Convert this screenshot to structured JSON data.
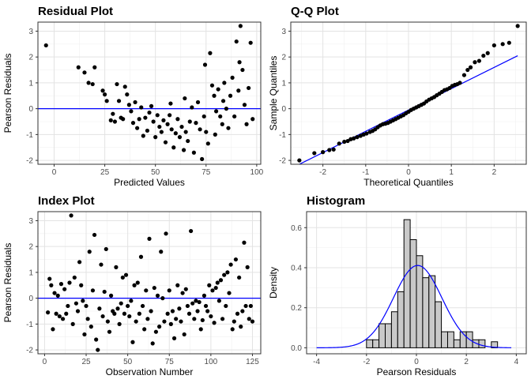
{
  "chart_data": [
    {
      "type": "scatter",
      "title": "Residual Plot",
      "xlabel": "Predicted Values",
      "ylabel": "Pearson Residuals",
      "xlim": [
        -8,
        102
      ],
      "ylim": [
        -2.15,
        3.35
      ],
      "xticks": [
        0,
        25,
        50,
        75,
        100
      ],
      "yticks": [
        -2,
        -1,
        0,
        1,
        2,
        3
      ],
      "hline": {
        "y": 0,
        "color": "#0000ff"
      },
      "points": [
        [
          -4,
          2.45
        ],
        [
          12,
          1.6
        ],
        [
          15,
          1.4
        ],
        [
          17,
          1.0
        ],
        [
          19,
          0.95
        ],
        [
          20,
          1.6
        ],
        [
          24,
          0.7
        ],
        [
          25,
          0.55
        ],
        [
          26,
          0.3
        ],
        [
          28,
          -0.45
        ],
        [
          29,
          -0.2
        ],
        [
          30,
          -0.5
        ],
        [
          31,
          0.95
        ],
        [
          32,
          0.3
        ],
        [
          33,
          -0.35
        ],
        [
          34,
          -0.4
        ],
        [
          35,
          0.85
        ],
        [
          36,
          0.55
        ],
        [
          37,
          0.15
        ],
        [
          38,
          -0.1
        ],
        [
          39,
          -0.55
        ],
        [
          40,
          0.25
        ],
        [
          41,
          -0.75
        ],
        [
          42,
          -0.4
        ],
        [
          43,
          0.05
        ],
        [
          44,
          -1.05
        ],
        [
          45,
          -0.35
        ],
        [
          46,
          -0.85
        ],
        [
          47,
          -0.15
        ],
        [
          48,
          0.1
        ],
        [
          49,
          -0.5
        ],
        [
          50,
          -1.1
        ],
        [
          51,
          -0.25
        ],
        [
          52,
          -0.7
        ],
        [
          53,
          -0.9
        ],
        [
          54,
          -0.45
        ],
        [
          55,
          -1.3
        ],
        [
          56,
          -0.6
        ],
        [
          57,
          -0.25
        ],
        [
          58,
          -0.8
        ],
        [
          59,
          -1.5
        ],
        [
          60,
          -0.95
        ],
        [
          61,
          -0.4
        ],
        [
          62,
          -1.1
        ],
        [
          63,
          -0.7
        ],
        [
          64,
          -1.6
        ],
        [
          65,
          -0.9
        ],
        [
          66,
          -1.25
        ],
        [
          67,
          -0.5
        ],
        [
          68,
          0.05
        ],
        [
          69,
          -1.7
        ],
        [
          70,
          -0.55
        ],
        [
          71,
          0.25
        ],
        [
          72,
          -0.8
        ],
        [
          73,
          -1.95
        ],
        [
          74,
          -0.3
        ],
        [
          75,
          -0.9
        ],
        [
          76,
          -1.35
        ],
        [
          77,
          2.15
        ],
        [
          78,
          0.9
        ],
        [
          79,
          0.5
        ],
        [
          80,
          -0.1
        ],
        [
          81,
          0.75
        ],
        [
          82,
          -0.3
        ],
        [
          83,
          -0.6
        ],
        [
          84,
          1.0
        ],
        [
          85,
          0.0
        ],
        [
          86,
          -0.75
        ],
        [
          87,
          0.5
        ],
        [
          88,
          1.2
        ],
        [
          89,
          -0.3
        ],
        [
          90,
          2.6
        ],
        [
          91,
          0.7
        ],
        [
          92,
          3.2
        ],
        [
          93,
          1.5
        ],
        [
          94,
          0.15
        ],
        [
          95,
          -0.6
        ],
        [
          96,
          0.8
        ],
        [
          97,
          2.55
        ],
        [
          98,
          -0.4
        ],
        [
          91.5,
          1.8
        ],
        [
          79.5,
          -1.0
        ],
        [
          83.5,
          0.3
        ],
        [
          74.5,
          1.7
        ],
        [
          64.5,
          0.4
        ],
        [
          57.5,
          0.2
        ]
      ]
    },
    {
      "type": "scatter",
      "title": "Q-Q Plot",
      "xlabel": "Theoretical Quantiles",
      "ylabel": "Sample Quantiles",
      "xlim": [
        -2.75,
        2.75
      ],
      "ylim": [
        -2.15,
        3.35
      ],
      "xticks": [
        -2,
        -1,
        0,
        1,
        2
      ],
      "yticks": [
        -2,
        -1,
        0,
        1,
        2,
        3
      ],
      "reference_line": {
        "x": [
          -2.55,
          2.55
        ],
        "y": [
          -2.15,
          2.05
        ],
        "color": "#0000ff"
      },
      "points": [
        [
          -2.55,
          -2.0
        ],
        [
          -2.2,
          -1.72
        ],
        [
          -2.0,
          -1.68
        ],
        [
          -1.85,
          -1.6
        ],
        [
          -1.75,
          -1.58
        ],
        [
          -1.62,
          -1.35
        ],
        [
          -1.5,
          -1.28
        ],
        [
          -1.42,
          -1.25
        ],
        [
          -1.35,
          -1.18
        ],
        [
          -1.28,
          -1.15
        ],
        [
          -1.2,
          -1.1
        ],
        [
          -1.12,
          -1.05
        ],
        [
          -1.05,
          -1.0
        ],
        [
          -0.98,
          -0.96
        ],
        [
          -0.9,
          -0.9
        ],
        [
          -0.84,
          -0.86
        ],
        [
          -0.78,
          -0.8
        ],
        [
          -0.72,
          -0.72
        ],
        [
          -0.66,
          -0.65
        ],
        [
          -0.6,
          -0.6
        ],
        [
          -0.54,
          -0.58
        ],
        [
          -0.48,
          -0.55
        ],
        [
          -0.42,
          -0.5
        ],
        [
          -0.36,
          -0.45
        ],
        [
          -0.3,
          -0.4
        ],
        [
          -0.24,
          -0.35
        ],
        [
          -0.18,
          -0.3
        ],
        [
          -0.12,
          -0.25
        ],
        [
          -0.06,
          -0.18
        ],
        [
          0.0,
          -0.12
        ],
        [
          0.06,
          -0.05
        ],
        [
          0.12,
          0.0
        ],
        [
          0.18,
          0.05
        ],
        [
          0.24,
          0.1
        ],
        [
          0.3,
          0.15
        ],
        [
          0.36,
          0.2
        ],
        [
          0.42,
          0.28
        ],
        [
          0.48,
          0.35
        ],
        [
          0.54,
          0.4
        ],
        [
          0.6,
          0.45
        ],
        [
          0.66,
          0.52
        ],
        [
          0.72,
          0.58
        ],
        [
          0.78,
          0.65
        ],
        [
          0.84,
          0.72
        ],
        [
          0.9,
          0.75
        ],
        [
          0.96,
          0.8
        ],
        [
          1.02,
          0.88
        ],
        [
          1.08,
          0.92
        ],
        [
          1.14,
          0.95
        ],
        [
          1.2,
          1.0
        ],
        [
          1.3,
          1.3
        ],
        [
          1.38,
          1.5
        ],
        [
          1.45,
          1.6
        ],
        [
          1.55,
          1.8
        ],
        [
          1.65,
          1.85
        ],
        [
          1.75,
          2.05
        ],
        [
          1.85,
          2.15
        ],
        [
          2.0,
          2.45
        ],
        [
          2.2,
          2.5
        ],
        [
          2.35,
          2.55
        ],
        [
          2.55,
          3.2
        ]
      ]
    },
    {
      "type": "scatter",
      "title": "Index Plot",
      "xlabel": "Observation Number",
      "ylabel": "Pearson Residuals",
      "xlim": [
        -4,
        130
      ],
      "ylim": [
        -2.15,
        3.35
      ],
      "xticks": [
        0,
        25,
        50,
        75,
        100,
        125
      ],
      "yticks": [
        -2,
        -1,
        0,
        1,
        2,
        3
      ],
      "hline": {
        "y": 0,
        "color": "#0000ff"
      },
      "points": [
        [
          2,
          -0.55
        ],
        [
          3,
          0.75
        ],
        [
          4,
          0.5
        ],
        [
          5,
          -1.2
        ],
        [
          6,
          0.2
        ],
        [
          7,
          -0.6
        ],
        [
          8,
          0.1
        ],
        [
          9,
          -0.7
        ],
        [
          10,
          0.55
        ],
        [
          11,
          -0.8
        ],
        [
          12,
          0.35
        ],
        [
          13,
          -0.6
        ],
        [
          14,
          -0.3
        ],
        [
          15,
          0.6
        ],
        [
          16,
          3.2
        ],
        [
          17,
          -1.0
        ],
        [
          18,
          0.8
        ],
        [
          19,
          -0.2
        ],
        [
          20,
          -0.5
        ],
        [
          21,
          1.4
        ],
        [
          22,
          0.5
        ],
        [
          23,
          -0.1
        ],
        [
          24,
          -1.4
        ],
        [
          25,
          -0.3
        ],
        [
          26,
          -0.8
        ],
        [
          27,
          1.8
        ],
        [
          28,
          -1.1
        ],
        [
          29,
          0.3
        ],
        [
          30,
          2.45
        ],
        [
          31,
          -1.6
        ],
        [
          32,
          -2.0
        ],
        [
          33,
          -0.4
        ],
        [
          34,
          1.3
        ],
        [
          35,
          -0.7
        ],
        [
          36,
          0.25
        ],
        [
          37,
          1.9
        ],
        [
          38,
          -0.9
        ],
        [
          39,
          -1.3
        ],
        [
          40,
          0.1
        ],
        [
          41,
          -0.5
        ],
        [
          42,
          -0.6
        ],
        [
          43,
          1.2
        ],
        [
          44,
          -0.4
        ],
        [
          45,
          -1.0
        ],
        [
          46,
          -0.2
        ],
        [
          47,
          0.8
        ],
        [
          48,
          -0.6
        ],
        [
          49,
          0.9
        ],
        [
          50,
          -0.3
        ],
        [
          51,
          -0.7
        ],
        [
          52,
          -0.1
        ],
        [
          53,
          -1.7
        ],
        [
          54,
          0.5
        ],
        [
          55,
          -0.9
        ],
        [
          56,
          0.6
        ],
        [
          57,
          -0.6
        ],
        [
          58,
          1.6
        ],
        [
          59,
          -0.3
        ],
        [
          60,
          -1.2
        ],
        [
          61,
          0.3
        ],
        [
          62,
          -0.8
        ],
        [
          63,
          2.3
        ],
        [
          64,
          -0.5
        ],
        [
          65,
          -1.75
        ],
        [
          66,
          0.4
        ],
        [
          67,
          -1.3
        ],
        [
          68,
          0.1
        ],
        [
          69,
          -1.1
        ],
        [
          70,
          1.8
        ],
        [
          71,
          0.0
        ],
        [
          72,
          -0.9
        ],
        [
          73,
          2.5
        ],
        [
          74,
          -0.6
        ],
        [
          75,
          0.3
        ],
        [
          76,
          -1.0
        ],
        [
          77,
          -0.5
        ],
        [
          78,
          -1.55
        ],
        [
          79,
          -0.8
        ],
        [
          80,
          0.5
        ],
        [
          81,
          -0.4
        ],
        [
          82,
          -0.9
        ],
        [
          83,
          0.2
        ],
        [
          84,
          -1.4
        ],
        [
          85,
          0.35
        ],
        [
          86,
          -0.3
        ],
        [
          87,
          -0.6
        ],
        [
          88,
          2.6
        ],
        [
          89,
          -0.2
        ],
        [
          90,
          -0.8
        ],
        [
          91,
          -0.1
        ],
        [
          92,
          -0.5
        ],
        [
          93,
          -0.15
        ],
        [
          94,
          -1.2
        ],
        [
          95,
          -0.85
        ],
        [
          96,
          0.1
        ],
        [
          97,
          -0.3
        ],
        [
          98,
          -0.5
        ],
        [
          99,
          0.5
        ],
        [
          100,
          -0.7
        ],
        [
          101,
          0.3
        ],
        [
          102,
          -0.95
        ],
        [
          103,
          0.4
        ],
        [
          104,
          0.6
        ],
        [
          105,
          -0.1
        ],
        [
          106,
          0.7
        ],
        [
          107,
          -0.8
        ],
        [
          108,
          0.9
        ],
        [
          109,
          -0.3
        ],
        [
          110,
          1.0
        ],
        [
          111,
          0.2
        ],
        [
          112,
          1.3
        ],
        [
          113,
          -1.2
        ],
        [
          114,
          -0.9
        ],
        [
          115,
          1.5
        ],
        [
          116,
          -0.6
        ],
        [
          117,
          0.8
        ],
        [
          118,
          -1.1
        ],
        [
          119,
          -0.5
        ],
        [
          120,
          2.15
        ],
        [
          121,
          -0.3
        ],
        [
          122,
          1.2
        ],
        [
          123,
          -0.8
        ],
        [
          124,
          -0.3
        ],
        [
          125,
          -0.9
        ]
      ]
    },
    {
      "type": "histogram",
      "title": "Histogram",
      "xlabel": "Pearson Residuals",
      "ylabel": "Density",
      "xlim": [
        -4.4,
        4.4
      ],
      "ylim": [
        -0.03,
        0.68
      ],
      "xticks": [
        -4,
        -2,
        0,
        2,
        4
      ],
      "yticks": [
        0.0,
        0.2,
        0.4,
        0.6
      ],
      "ytick_labels": [
        "0.0",
        "0.2",
        "0.4",
        "0.6"
      ],
      "bins": [
        [
          -2.0,
          -1.75,
          0.04
        ],
        [
          -1.75,
          -1.5,
          0.04
        ],
        [
          -1.5,
          -1.25,
          0.12
        ],
        [
          -1.25,
          -1.0,
          0.12
        ],
        [
          -1.0,
          -0.75,
          0.18
        ],
        [
          -0.75,
          -0.5,
          0.28
        ],
        [
          -0.5,
          -0.25,
          0.64
        ],
        [
          -0.25,
          0.0,
          0.54
        ],
        [
          0.0,
          0.25,
          0.46
        ],
        [
          0.25,
          0.5,
          0.35
        ],
        [
          0.5,
          0.75,
          0.36
        ],
        [
          0.75,
          1.0,
          0.23
        ],
        [
          1.0,
          1.25,
          0.08
        ],
        [
          1.25,
          1.5,
          0.08
        ],
        [
          1.5,
          1.75,
          0.04
        ],
        [
          1.75,
          2.0,
          0.08
        ],
        [
          2.0,
          2.25,
          0.08
        ],
        [
          2.25,
          2.5,
          0.04
        ],
        [
          2.5,
          2.75,
          0.04
        ],
        [
          2.75,
          3.0,
          0.0
        ],
        [
          3.0,
          3.25,
          0.03
        ]
      ],
      "density_curve": {
        "mean": 0.05,
        "sd": 0.97,
        "from": -4.0,
        "to": 3.8,
        "color": "#0000ff"
      }
    }
  ]
}
